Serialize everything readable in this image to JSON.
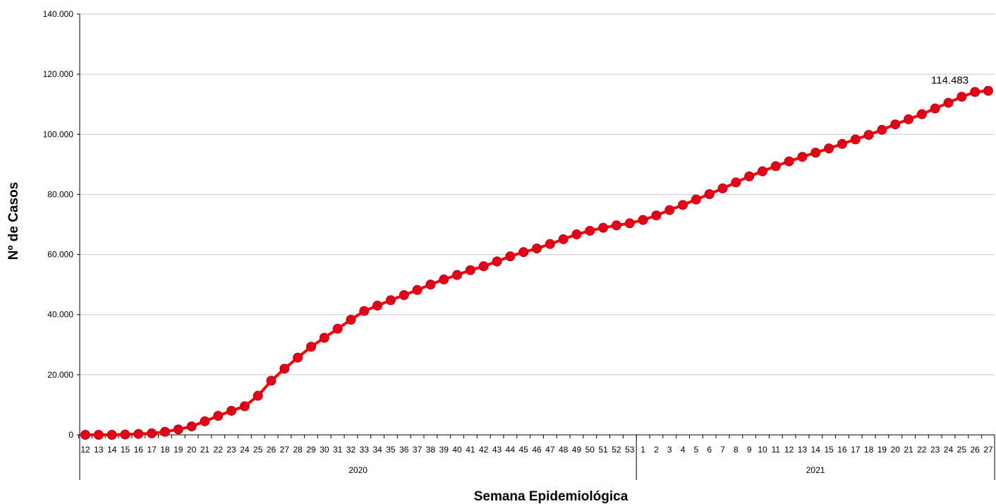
{
  "chart_data": {
    "type": "line",
    "title": "",
    "xlabel": "Semana Epidemiológica",
    "ylabel": "Nº de Casos",
    "ylim": [
      0,
      140000
    ],
    "y_ticks": [
      0,
      20000,
      40000,
      60000,
      80000,
      100000,
      120000,
      140000
    ],
    "y_tick_labels": [
      "0",
      "20.000",
      "40.000",
      "60.000",
      "80.000",
      "100.000",
      "120.000",
      "140.000"
    ],
    "grid": true,
    "legend": "none",
    "line_color": "#ff0000",
    "marker_color": "#e3001b",
    "year_groups": [
      {
        "label": "2020",
        "weeks": [
          "12",
          "13",
          "14",
          "15",
          "16",
          "17",
          "18",
          "19",
          "20",
          "21",
          "22",
          "23",
          "24",
          "25",
          "26",
          "27",
          "28",
          "29",
          "30",
          "31",
          "32",
          "33",
          "34",
          "35",
          "36",
          "37",
          "38",
          "39",
          "40",
          "41",
          "42",
          "43",
          "44",
          "45",
          "46",
          "47",
          "48",
          "49",
          "50",
          "51",
          "52",
          "53"
        ]
      },
      {
        "label": "2021",
        "weeks": [
          "1",
          "2",
          "3",
          "4",
          "5",
          "6",
          "7",
          "8",
          "9",
          "10",
          "11",
          "12",
          "13",
          "14",
          "15",
          "16",
          "17",
          "18",
          "19",
          "20",
          "21",
          "22",
          "23",
          "24",
          "25",
          "26",
          "27"
        ]
      }
    ],
    "series": [
      {
        "values": [
          0,
          0,
          0,
          100,
          300,
          500,
          1000,
          1800,
          2800,
          4500,
          6300,
          8000,
          9500,
          13000,
          18000,
          22000,
          25700,
          29300,
          32300,
          35300,
          38300,
          41200,
          43000,
          44800,
          46500,
          48200,
          50000,
          51700,
          53200,
          54800,
          56100,
          57700,
          59400,
          60800,
          62000,
          63500,
          65100,
          66700,
          67900,
          68900,
          69700,
          70400,
          71500,
          73000,
          74800,
          76500,
          78300,
          80100,
          82000,
          84000,
          86000,
          87700,
          89400,
          91000,
          92500,
          93900,
          95300,
          96800,
          98300,
          99800,
          101500,
          103300,
          105000,
          106700,
          108600,
          110500,
          112500,
          114100,
          114483
        ]
      }
    ],
    "last_point_label": "114.483"
  }
}
